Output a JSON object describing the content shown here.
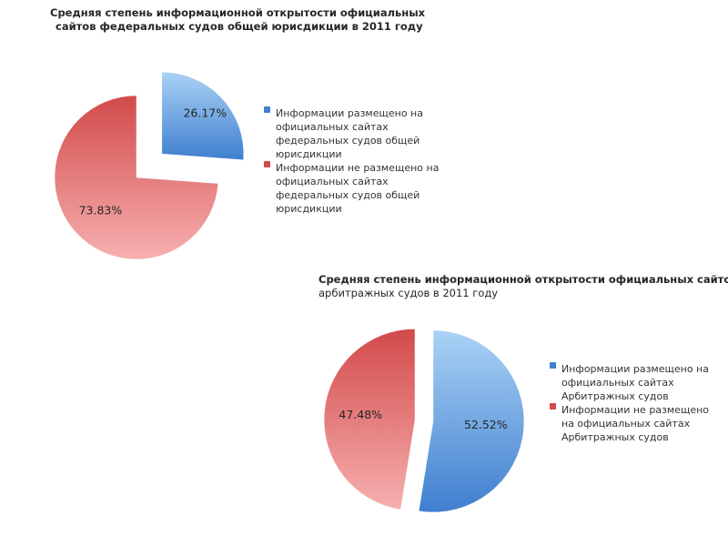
{
  "chart_data": [
    {
      "type": "pie",
      "title": "Средняя степень информационной открытости официальных",
      "subtitle": "сайтов федеральных судов общей юрисдикции в 2011 году",
      "slices": [
        {
          "label": "Информации размещено на официальных сайтах федеральных судов общей юрисдикции",
          "value": 26.17,
          "data_label": "26.17%",
          "color": "#5b9bd5",
          "exploded": true
        },
        {
          "label": "Информации не размещено на официальных сайтах федеральных судов общей юрисдикции",
          "value": 73.83,
          "data_label": "73.83%",
          "color": "#e05a5a",
          "exploded": false
        }
      ],
      "legend_position": "right"
    },
    {
      "type": "pie",
      "title": "Средняя степень информационной открытости официальных сайтов",
      "subtitle": "арбитражных судов в 2011 году",
      "slices": [
        {
          "label": "Информации размещено на официальных сайтах Арбитражных судов",
          "value": 52.52,
          "data_label": "52.52%",
          "color": "#5b9bd5",
          "exploded": true
        },
        {
          "label": "Информации не размещено на официальных сайтах Арбитражных судов",
          "value": 47.48,
          "data_label": "47.48%",
          "color": "#e05a5a",
          "exploded": true
        }
      ],
      "legend_position": "right"
    }
  ]
}
